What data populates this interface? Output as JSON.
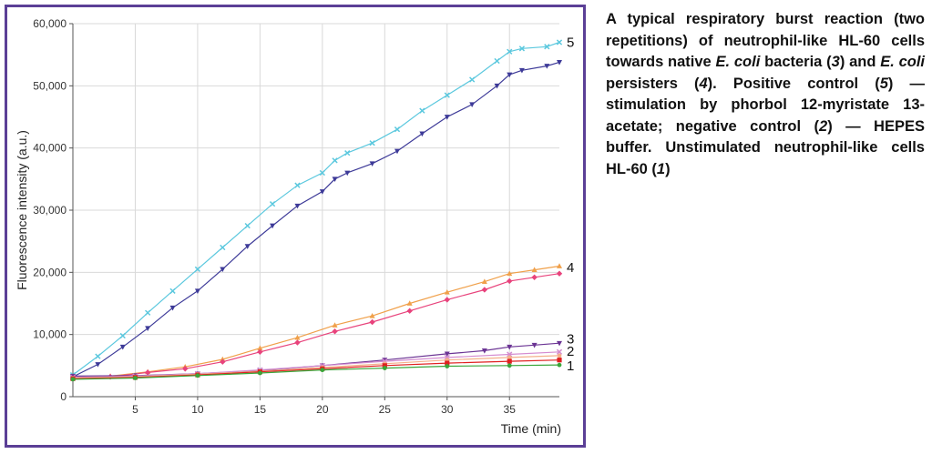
{
  "chart_data": {
    "type": "line",
    "title": "",
    "xlabel": "Time (min)",
    "ylabel": "Fluorescence intensity (a.u.)",
    "xlim": [
      0,
      39
    ],
    "ylim": [
      0,
      60000
    ],
    "xticks": [
      5,
      10,
      15,
      20,
      25,
      30,
      35
    ],
    "yticks": [
      0,
      10000,
      20000,
      30000,
      40000,
      50000,
      60000
    ],
    "ytick_labels": [
      "0",
      "10,000",
      "20,000",
      "30,000",
      "40,000",
      "50,000",
      "60,000"
    ],
    "grid": true,
    "legend": "none",
    "series": [
      {
        "name": "5",
        "color": "#5bc8de",
        "marker": "x",
        "x": [
          0,
          2,
          4,
          6,
          8,
          10,
          12,
          14,
          16,
          18,
          20,
          21,
          22,
          24,
          26,
          28,
          30,
          32,
          34,
          35,
          36,
          38,
          39
        ],
        "y": [
          3500,
          6500,
          9800,
          13500,
          17000,
          20500,
          24000,
          27500,
          31000,
          34000,
          36000,
          38000,
          39200,
          40800,
          43000,
          46000,
          48500,
          51000,
          54000,
          55500,
          56000,
          56300,
          57000
        ]
      },
      {
        "name": "5",
        "color": "#3d3a98",
        "marker": "triangle-down",
        "x": [
          0,
          2,
          4,
          6,
          8,
          10,
          12,
          14,
          16,
          18,
          20,
          21,
          22,
          24,
          26,
          28,
          30,
          32,
          34,
          35,
          36,
          38,
          39
        ],
        "y": [
          3200,
          5200,
          8000,
          11000,
          14300,
          17000,
          20500,
          24200,
          27500,
          30700,
          33000,
          35000,
          36000,
          37500,
          39500,
          42300,
          45000,
          47000,
          50000,
          51800,
          52500,
          53200,
          53800
        ]
      },
      {
        "name": "4",
        "color": "#f0a04a",
        "marker": "triangle-up",
        "x": [
          0,
          3,
          6,
          9,
          12,
          15,
          18,
          21,
          24,
          27,
          30,
          33,
          35,
          37,
          39
        ],
        "y": [
          3000,
          3300,
          4000,
          4800,
          6000,
          7800,
          9500,
          11500,
          13000,
          15000,
          16800,
          18500,
          19800,
          20400,
          21000
        ]
      },
      {
        "name": "4",
        "color": "#e8437c",
        "marker": "diamond",
        "x": [
          0,
          3,
          6,
          9,
          12,
          15,
          18,
          21,
          24,
          27,
          30,
          33,
          35,
          37,
          39
        ],
        "y": [
          2900,
          3200,
          3900,
          4500,
          5600,
          7200,
          8700,
          10500,
          12000,
          13800,
          15600,
          17200,
          18600,
          19200,
          19800
        ]
      },
      {
        "name": "3",
        "color": "#6b3494",
        "marker": "triangle-down",
        "x": [
          0,
          5,
          10,
          15,
          20,
          25,
          30,
          33,
          35,
          37,
          39
        ],
        "y": [
          3300,
          3400,
          3700,
          4200,
          5000,
          5900,
          6900,
          7400,
          8000,
          8300,
          8600
        ]
      },
      {
        "name": "2",
        "color": "#d48cd0",
        "marker": "x",
        "x": [
          0,
          5,
          10,
          15,
          20,
          25,
          30,
          35,
          39
        ],
        "y": [
          3100,
          3300,
          3700,
          4300,
          5000,
          5700,
          6300,
          6800,
          7200
        ]
      },
      {
        "name": "2",
        "color": "#f4b08a",
        "marker": "circle",
        "x": [
          0,
          5,
          10,
          15,
          20,
          25,
          30,
          35,
          39
        ],
        "y": [
          3000,
          3200,
          3600,
          4100,
          4700,
          5300,
          5900,
          6300,
          6600
        ]
      },
      {
        "name": "1",
        "color": "#e02020",
        "marker": "square",
        "x": [
          0,
          5,
          10,
          15,
          20,
          25,
          30,
          35,
          39
        ],
        "y": [
          2900,
          3100,
          3500,
          4000,
          4500,
          5000,
          5400,
          5700,
          5900
        ]
      },
      {
        "name": "1",
        "color": "#3aa63a",
        "marker": "circle",
        "x": [
          0,
          5,
          10,
          15,
          20,
          25,
          30,
          35,
          39
        ],
        "y": [
          2800,
          3000,
          3400,
          3800,
          4300,
          4600,
          4900,
          5000,
          5100
        ]
      }
    ],
    "series_labels": [
      {
        "text": "5",
        "x": 39,
        "y": 57000
      },
      {
        "text": "4",
        "x": 39,
        "y": 20800
      },
      {
        "text": "3",
        "x": 39,
        "y": 9300
      },
      {
        "text": "2",
        "x": 39,
        "y": 7300
      },
      {
        "text": "1",
        "x": 39,
        "y": 5000
      }
    ]
  },
  "caption": {
    "parts": [
      {
        "text": "A typical respiratory burst reaction (two repetitions) of neutrophil-like HL-60 cells towards native ",
        "italic": false
      },
      {
        "text": "E. coli",
        "italic": true
      },
      {
        "text": " bacteria (",
        "italic": false
      },
      {
        "text": "3",
        "italic": true
      },
      {
        "text": ") and ",
        "italic": false
      },
      {
        "text": "E. coli",
        "italic": true
      },
      {
        "text": " persisters (",
        "italic": false
      },
      {
        "text": "4",
        "italic": true
      },
      {
        "text": "). Positive control (",
        "italic": false
      },
      {
        "text": "5",
        "italic": true
      },
      {
        "text": ") — stimulation by phorbol 12-myristate 13-acetate; negative control (",
        "italic": false
      },
      {
        "text": "2",
        "italic": true
      },
      {
        "text": ") — HEPES buffer. Unstimulated neutrophil-like cells HL-60 (",
        "italic": false
      },
      {
        "text": "1",
        "italic": true
      },
      {
        "text": ")",
        "italic": false
      }
    ]
  },
  "colors": {
    "frame": "#5b3f96",
    "grid": "#d9d9d9",
    "axis": "#555555"
  }
}
